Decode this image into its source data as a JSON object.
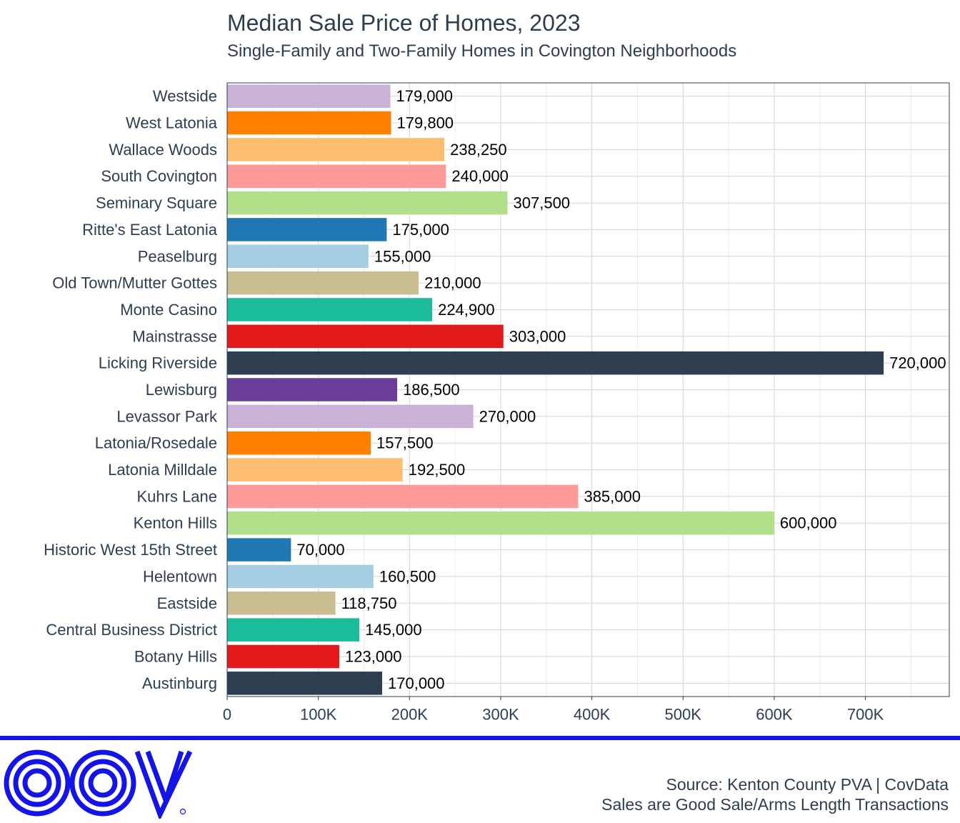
{
  "title": "Median Sale Price of Homes, 2023",
  "subtitle": "Single-Family and Two-Family Homes in Covington Neighborhoods",
  "footer": {
    "source_line": "Source: Kenton County PVA | CovData",
    "note_line": "Sales are Good Sale/Arms Length Transactions",
    "logo_color": "#1414e6"
  },
  "chart_data": {
    "type": "bar",
    "orientation": "horizontal",
    "categories": [
      "Westside",
      "West Latonia",
      "Wallace Woods",
      "South Covington",
      "Seminary Square",
      "Ritte's East Latonia",
      "Peaselburg",
      "Old Town/Mutter Gottes",
      "Monte Casino",
      "Mainstrasse",
      "Licking Riverside",
      "Lewisburg",
      "Levassor Park",
      "Latonia/Rosedale",
      "Latonia Milldale",
      "Kuhrs Lane",
      "Kenton Hills",
      "Historic West 15th Street",
      "Helentown",
      "Eastside",
      "Central Business District",
      "Botany Hills",
      "Austinburg"
    ],
    "values": [
      179000,
      179800,
      238250,
      240000,
      307500,
      175000,
      155000,
      210000,
      224900,
      303000,
      720000,
      186500,
      270000,
      157500,
      192500,
      385000,
      600000,
      70000,
      160500,
      118750,
      145000,
      123000,
      170000
    ],
    "value_labels": [
      "179,000",
      "179,800",
      "238,250",
      "240,000",
      "307,500",
      "175,000",
      "155,000",
      "210,000",
      "224,900",
      "303,000",
      "720,000",
      "186,500",
      "270,000",
      "157,500",
      "192,500",
      "385,000",
      "600,000",
      "70,000",
      "160,500",
      "118,750",
      "145,000",
      "123,000",
      "170,000"
    ],
    "colors": [
      "#cab2d6",
      "#ff7f00",
      "#fdbf6f",
      "#fb9a99",
      "#b2df8a",
      "#1f78b4",
      "#a6cee3",
      "#cbbd92",
      "#1abc9c",
      "#e31a1c",
      "#2c3e50",
      "#6a3d9a",
      "#cab2d6",
      "#ff7f00",
      "#fdbf6f",
      "#fb9a99",
      "#b2df8a",
      "#1f78b4",
      "#a6cee3",
      "#cbbd92",
      "#1abc9c",
      "#e31a1c",
      "#2c3e50"
    ],
    "x_ticks": [
      0,
      100000,
      200000,
      300000,
      400000,
      500000,
      600000,
      700000
    ],
    "x_tick_labels": [
      "0",
      "100K",
      "200K",
      "300K",
      "400K",
      "500K",
      "600K",
      "700K"
    ],
    "xlim": [
      0,
      792000
    ],
    "xlabel": "",
    "ylabel": "",
    "grid": true,
    "legend": "none"
  }
}
